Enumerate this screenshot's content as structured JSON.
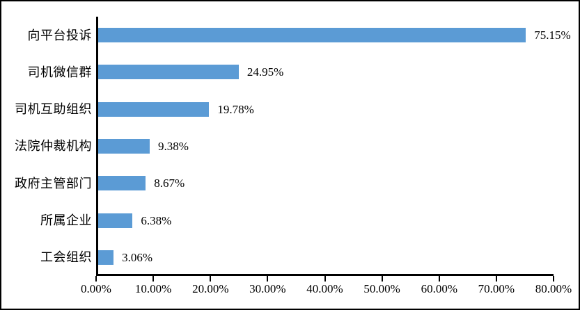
{
  "chart_data": {
    "type": "bar",
    "orientation": "horizontal",
    "title": "",
    "xlabel": "",
    "ylabel": "",
    "categories": [
      "向平台投诉",
      "司机微信群",
      "司机互助组织",
      "法院仲裁机构",
      "政府主管部门",
      "所属企业",
      "工会组织"
    ],
    "values": [
      75.15,
      24.95,
      19.78,
      9.38,
      8.67,
      6.38,
      3.06
    ],
    "value_labels": [
      "75.15%",
      "24.95%",
      "19.78%",
      "9.38%",
      "8.67%",
      "6.38%",
      "3.06%"
    ],
    "x_ticks": [
      0,
      10,
      20,
      30,
      40,
      50,
      60,
      70,
      80
    ],
    "x_tick_labels": [
      "0.00%",
      "10.00%",
      "20.00%",
      "30.00%",
      "40.00%",
      "50.00%",
      "60.00%",
      "70.00%",
      "80.00%"
    ],
    "xlim": [
      0,
      80
    ],
    "grid": false,
    "legend": false,
    "bar_color": "#5B9BD5",
    "axis_color": "#000000",
    "text_color": "#000000",
    "frame_color": "#000000",
    "background_color": "#ffffff"
  }
}
